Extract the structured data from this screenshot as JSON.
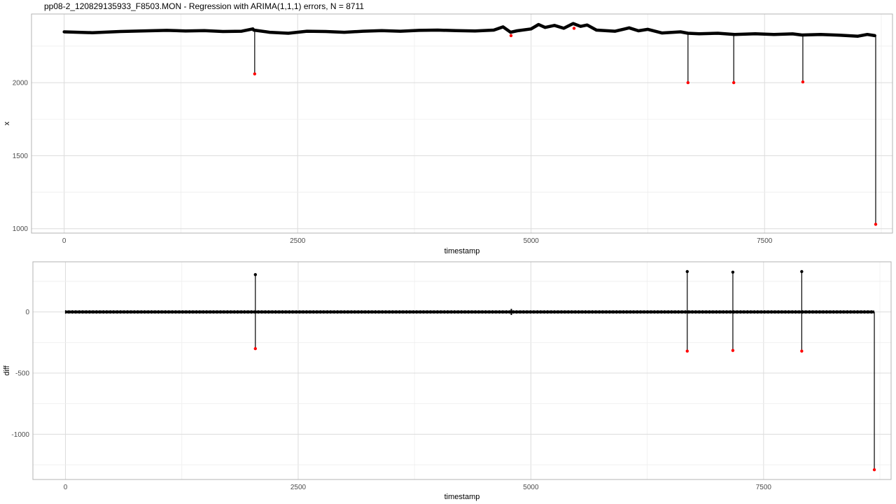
{
  "title": "pp08-2_120829135933_F8503.MON - Regression with ARIMA(1,1,1) errors, N = 8711",
  "chart_data": [
    {
      "type": "line",
      "panel": "top",
      "xlabel": "timestamp",
      "ylabel": "x",
      "xlim": [
        -350,
        8870
      ],
      "ylim": [
        970,
        2470
      ],
      "xticks": [
        0,
        2500,
        5000,
        7500
      ],
      "yticks": [
        1000,
        1500,
        2000
      ],
      "grid": true,
      "series": [
        {
          "values": [
            {
              "x": 0,
              "y": 2348
            },
            {
              "x": 300,
              "y": 2342
            },
            {
              "x": 600,
              "y": 2350
            },
            {
              "x": 900,
              "y": 2355
            },
            {
              "x": 1100,
              "y": 2358
            },
            {
              "x": 1300,
              "y": 2354
            },
            {
              "x": 1500,
              "y": 2356
            },
            {
              "x": 1700,
              "y": 2350
            },
            {
              "x": 1900,
              "y": 2352
            },
            {
              "x": 2020,
              "y": 2368
            },
            {
              "x": 2030,
              "y": 2360
            },
            {
              "x": 2200,
              "y": 2345
            },
            {
              "x": 2400,
              "y": 2338
            },
            {
              "x": 2600,
              "y": 2352
            },
            {
              "x": 2800,
              "y": 2350
            },
            {
              "x": 3000,
              "y": 2345
            },
            {
              "x": 3200,
              "y": 2352
            },
            {
              "x": 3400,
              "y": 2356
            },
            {
              "x": 3600,
              "y": 2352
            },
            {
              "x": 3800,
              "y": 2358
            },
            {
              "x": 4000,
              "y": 2360
            },
            {
              "x": 4200,
              "y": 2356
            },
            {
              "x": 4400,
              "y": 2354
            },
            {
              "x": 4600,
              "y": 2360
            },
            {
              "x": 4700,
              "y": 2382
            },
            {
              "x": 4780,
              "y": 2345
            },
            {
              "x": 4850,
              "y": 2355
            },
            {
              "x": 5000,
              "y": 2368
            },
            {
              "x": 5080,
              "y": 2398
            },
            {
              "x": 5150,
              "y": 2378
            },
            {
              "x": 5250,
              "y": 2392
            },
            {
              "x": 5350,
              "y": 2372
            },
            {
              "x": 5450,
              "y": 2405
            },
            {
              "x": 5530,
              "y": 2385
            },
            {
              "x": 5600,
              "y": 2395
            },
            {
              "x": 5700,
              "y": 2360
            },
            {
              "x": 5900,
              "y": 2352
            },
            {
              "x": 6050,
              "y": 2375
            },
            {
              "x": 6150,
              "y": 2355
            },
            {
              "x": 6250,
              "y": 2365
            },
            {
              "x": 6400,
              "y": 2340
            },
            {
              "x": 6600,
              "y": 2348
            },
            {
              "x": 6680,
              "y": 2338
            },
            {
              "x": 6800,
              "y": 2335
            },
            {
              "x": 7000,
              "y": 2338
            },
            {
              "x": 7180,
              "y": 2330
            },
            {
              "x": 7400,
              "y": 2335
            },
            {
              "x": 7600,
              "y": 2330
            },
            {
              "x": 7800,
              "y": 2334
            },
            {
              "x": 7900,
              "y": 2326
            },
            {
              "x": 8100,
              "y": 2330
            },
            {
              "x": 8300,
              "y": 2325
            },
            {
              "x": 8500,
              "y": 2318
            },
            {
              "x": 8600,
              "y": 2330
            },
            {
              "x": 8680,
              "y": 2322
            }
          ]
        }
      ],
      "spikes": [
        {
          "x": 2040,
          "from": 2360,
          "to": 2060
        },
        {
          "x": 6680,
          "from": 2340,
          "to": 2000
        },
        {
          "x": 7170,
          "from": 2330,
          "to": 2000
        },
        {
          "x": 7910,
          "from": 2330,
          "to": 2005
        },
        {
          "x": 8690,
          "from": 2325,
          "to": 1030
        }
      ],
      "anomalies": [
        {
          "x": 2040,
          "y": 2060
        },
        {
          "x": 4785,
          "y": 2322
        },
        {
          "x": 5460,
          "y": 2372
        },
        {
          "x": 6680,
          "y": 2000
        },
        {
          "x": 7170,
          "y": 2000
        },
        {
          "x": 7910,
          "y": 2005
        },
        {
          "x": 8690,
          "y": 1030
        }
      ],
      "point_color": "#000000",
      "anomaly_color": "#ff0000"
    },
    {
      "type": "line",
      "panel": "bottom",
      "xlabel": "timestamp",
      "ylabel": "diff",
      "xlim": [
        -350,
        8870
      ],
      "ylim": [
        -1370,
        410
      ],
      "xticks": [
        0,
        2500,
        5000,
        7500
      ],
      "yticks": [
        -1000,
        -500,
        0
      ],
      "grid": true,
      "spikes": [
        {
          "x": 2040,
          "from": 0,
          "to": 305
        },
        {
          "x": 2040,
          "from": 0,
          "to": -300
        },
        {
          "x": 6680,
          "from": 0,
          "to": 330
        },
        {
          "x": 6680,
          "from": 0,
          "to": -320
        },
        {
          "x": 7170,
          "from": 0,
          "to": 325
        },
        {
          "x": 7170,
          "from": 0,
          "to": -315
        },
        {
          "x": 7910,
          "from": 0,
          "to": 330
        },
        {
          "x": 7910,
          "from": 0,
          "to": -320
        },
        {
          "x": 8690,
          "from": 0,
          "to": -1290
        }
      ],
      "peaks": [
        {
          "x": 2040,
          "y": 305
        },
        {
          "x": 6680,
          "y": 330
        },
        {
          "x": 7170,
          "y": 325
        },
        {
          "x": 7910,
          "y": 330
        }
      ],
      "anomalies": [
        {
          "x": 2040,
          "y": -300
        },
        {
          "x": 6680,
          "y": -320
        },
        {
          "x": 7170,
          "y": -315
        },
        {
          "x": 7910,
          "y": -320
        },
        {
          "x": 8690,
          "y": -1290
        }
      ],
      "point_color": "#000000",
      "anomaly_color": "#ff0000"
    }
  ]
}
